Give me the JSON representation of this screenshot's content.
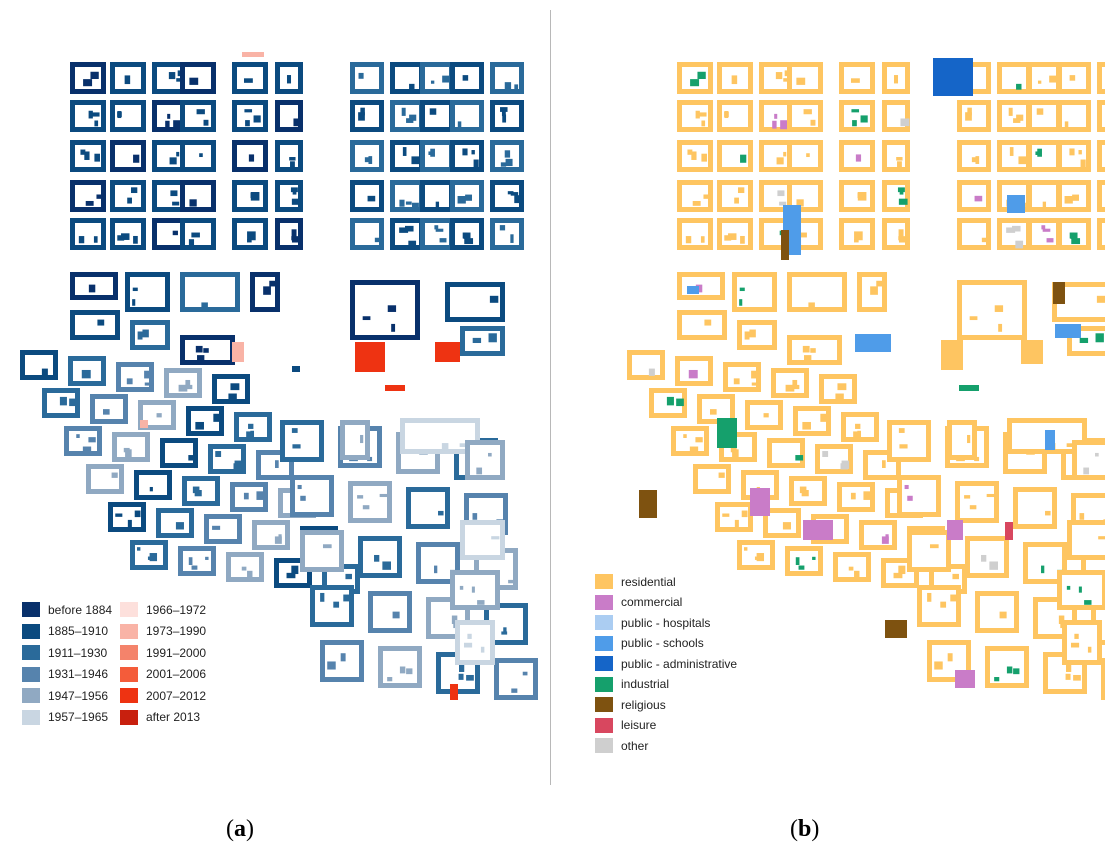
{
  "captions": {
    "a": "a",
    "b": "b"
  },
  "legend_a": [
    {
      "label": "before 1884",
      "color": "#08306b"
    },
    {
      "label": "1885–1910",
      "color": "#0b4a7f"
    },
    {
      "label": "1911–1930",
      "color": "#2a6a9a"
    },
    {
      "label": "1931–1946",
      "color": "#5683ad"
    },
    {
      "label": "1947–1956",
      "color": "#90a9c2"
    },
    {
      "label": "1957–1965",
      "color": "#c9d6e2"
    },
    {
      "label": "1966–1972",
      "color": "#fde0dc"
    },
    {
      "label": "1973–1990",
      "color": "#f9b3a6"
    },
    {
      "label": "1991–2000",
      "color": "#f4836b"
    },
    {
      "label": "2001–2006",
      "color": "#f45c3a"
    },
    {
      "label": "2007–2012",
      "color": "#ee3312"
    },
    {
      "label": "after 2013",
      "color": "#c8200e"
    }
  ],
  "legend_b": [
    {
      "label": "residential",
      "color": "#fec561"
    },
    {
      "label": "commercial",
      "color": "#c97cc8"
    },
    {
      "label": "public - hospitals",
      "color": "#abcdf2"
    },
    {
      "label": "public - schools",
      "color": "#4f9ce9"
    },
    {
      "label": "public - administrative",
      "color": "#1565c8"
    },
    {
      "label": "industrial",
      "color": "#15a06c"
    },
    {
      "label": "religious",
      "color": "#7e5210"
    },
    {
      "label": "leisure",
      "color": "#d8475f"
    },
    {
      "label": "other",
      "color": "#cfcfcf"
    }
  ]
}
